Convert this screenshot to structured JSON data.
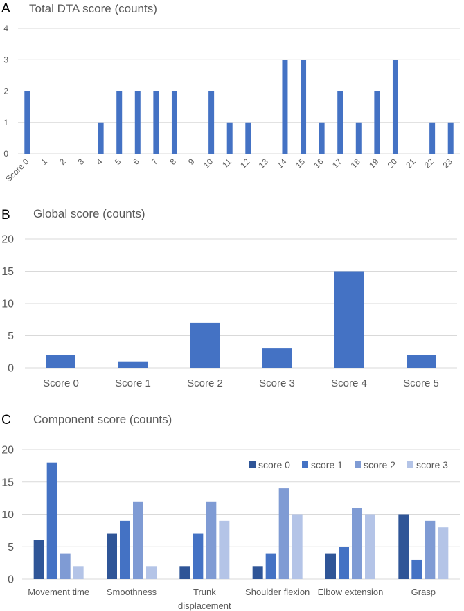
{
  "chart_data": [
    {
      "panel": "A",
      "type": "bar",
      "title": "Total DTA score (counts)",
      "categories": [
        "Score 0",
        "1",
        "2",
        "3",
        "4",
        "5",
        "6",
        "7",
        "8",
        "9",
        "10",
        "11",
        "12",
        "13",
        "14",
        "15",
        "16",
        "17",
        "18",
        "19",
        "20",
        "21",
        "22",
        "23"
      ],
      "values": [
        2,
        0,
        0,
        0,
        1,
        2,
        2,
        2,
        2,
        0,
        2,
        1,
        1,
        0,
        3,
        3,
        1,
        2,
        1,
        2,
        3,
        0,
        1,
        1
      ],
      "ylim": [
        0,
        4
      ],
      "yticks": [
        0,
        1,
        2,
        3,
        4
      ],
      "grid": true,
      "color": "#4472c4"
    },
    {
      "panel": "B",
      "type": "bar",
      "title": "Global score (counts)",
      "categories": [
        "Score 0",
        "Score 1",
        "Score 2",
        "Score 3",
        "Score 4",
        "Score 5"
      ],
      "values": [
        2,
        1,
        7,
        3,
        15,
        2
      ],
      "ylim": [
        0,
        20
      ],
      "yticks": [
        0,
        5,
        10,
        15,
        20
      ],
      "grid": true,
      "color": "#4472c4"
    },
    {
      "panel": "C",
      "type": "bar",
      "title": "Component score (counts)",
      "categories": [
        "Movement time",
        "Smoothness",
        "Trunk displacement",
        "Shoulder flexion",
        "Elbow extension",
        "Grasp"
      ],
      "series": [
        {
          "name": "score 0",
          "values": [
            6,
            7,
            2,
            2,
            4,
            10
          ],
          "color": "#2f5597"
        },
        {
          "name": "score 1",
          "values": [
            18,
            9,
            7,
            4,
            5,
            3
          ],
          "color": "#4472c4"
        },
        {
          "name": "score 2",
          "values": [
            4,
            12,
            12,
            14,
            11,
            9
          ],
          "color": "#7f9bd4"
        },
        {
          "name": "score 3",
          "values": [
            2,
            2,
            9,
            10,
            10,
            8
          ],
          "color": "#b4c4e7"
        }
      ],
      "ylim": [
        0,
        20
      ],
      "yticks": [
        0,
        5,
        10,
        15,
        20
      ],
      "grid": true,
      "legend": "top-right"
    }
  ]
}
